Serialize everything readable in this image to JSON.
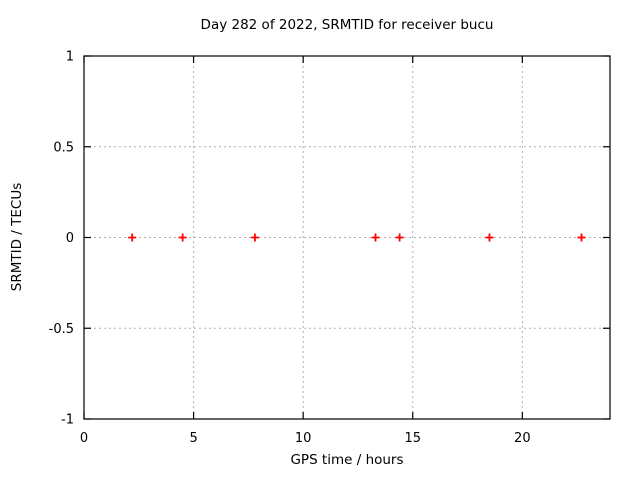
{
  "chart_data": {
    "type": "scatter",
    "title": "Day 282 of 2022, SRMTID for receiver bucu",
    "xlabel": "GPS time / hours",
    "ylabel": "SRMTID / TECUs",
    "xlim": [
      0,
      24
    ],
    "ylim": [
      -1,
      1
    ],
    "x_ticks": [
      0,
      5,
      10,
      15,
      20
    ],
    "y_ticks": [
      -1,
      -0.5,
      0,
      0.5,
      1
    ],
    "grid": true,
    "legend": false,
    "series": [
      {
        "name": "SRMTID",
        "marker": "plus",
        "color": "#ff0000",
        "x": [
          2.2,
          4.5,
          7.8,
          13.3,
          14.4,
          18.5,
          22.7
        ],
        "y": [
          0,
          0,
          0,
          0,
          0,
          0,
          0
        ]
      }
    ],
    "colors": {
      "marker": "#ff0000",
      "grid": "#b0b0b0",
      "border": "#000000",
      "text": "#000000",
      "background": "#ffffff"
    }
  }
}
